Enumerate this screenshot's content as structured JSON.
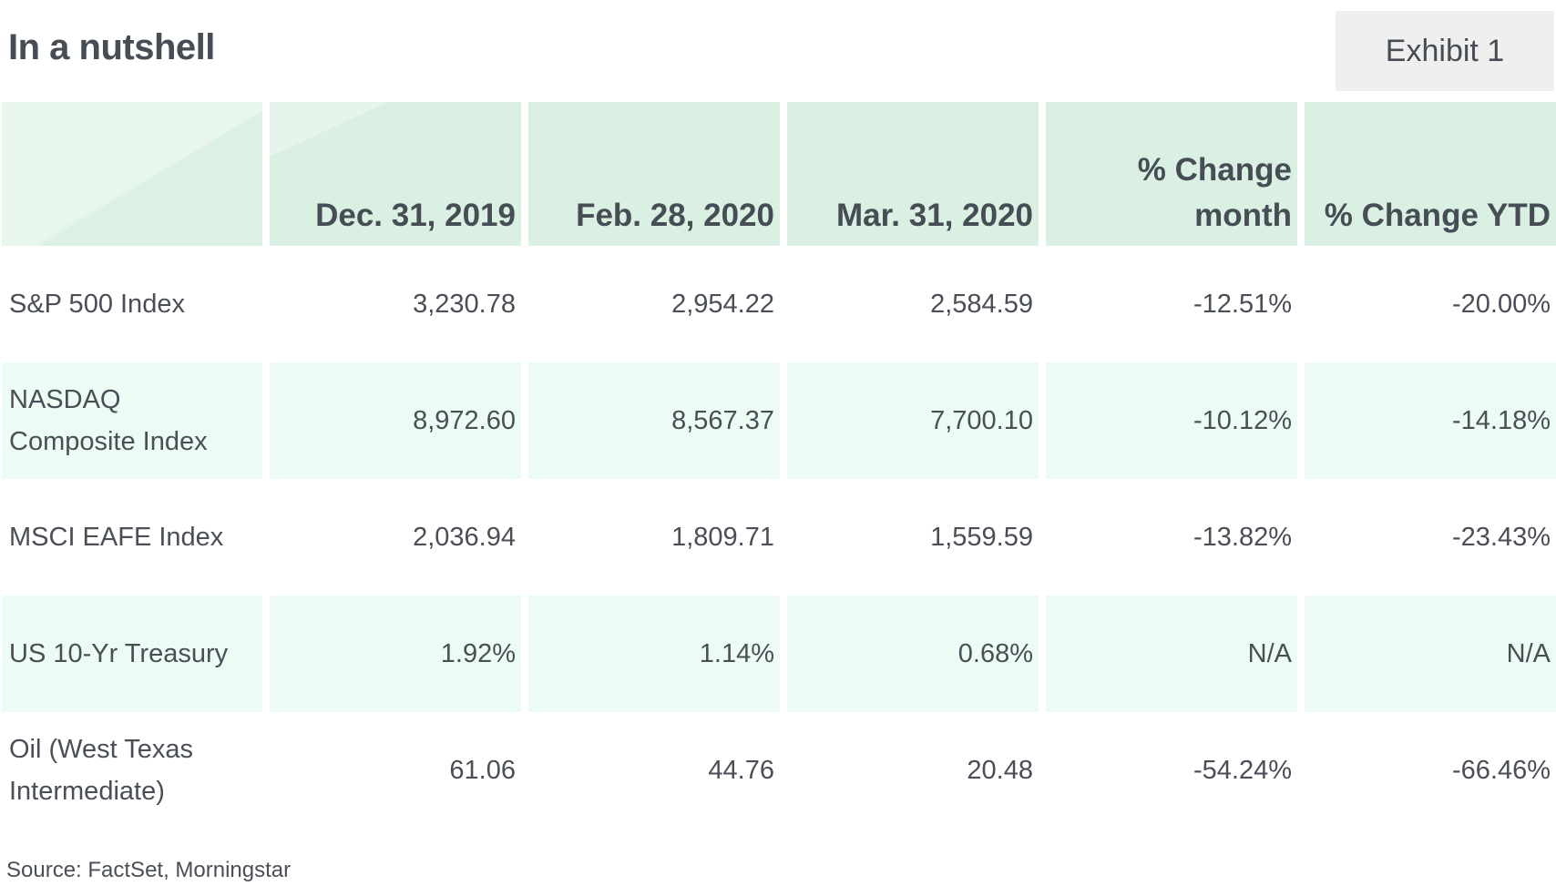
{
  "title": "In a nutshell",
  "exhibit": "Exhibit 1",
  "colors": {
    "header_bg": "#d9f0e3",
    "shaded_row_bg": "#ecfbf3",
    "text": "#4a4f57",
    "badge_bg": "#efefef"
  },
  "chart_data": {
    "type": "table",
    "title": "In a nutshell",
    "columns": [
      "",
      "Dec. 31, 2019",
      "Feb. 28, 2020",
      "Mar. 31, 2020",
      "% Change month",
      "% Change YTD"
    ],
    "header": {
      "c1": "Dec. 31, 2019",
      "c2": "Feb. 28, 2020",
      "c3": "Mar. 31, 2020",
      "c4_line1": "% Change",
      "c4_line2": "month",
      "c5": "% Change YTD"
    },
    "rows": [
      {
        "label_line1": "S&P 500 Index",
        "label_line2": "",
        "values": [
          "3,230.78",
          "2,954.22",
          "2,584.59",
          "-12.51%",
          "-20.00%"
        ]
      },
      {
        "label_line1": "NASDAQ",
        "label_line2": "Composite Index",
        "values": [
          "8,972.60",
          "8,567.37",
          "7,700.10",
          "-10.12%",
          "-14.18%"
        ]
      },
      {
        "label_line1": "MSCI EAFE Index",
        "label_line2": "",
        "values": [
          "2,036.94",
          "1,809.71",
          "1,559.59",
          "-13.82%",
          "-23.43%"
        ]
      },
      {
        "label_line1": "US 10-Yr Treasury",
        "label_line2": "",
        "values": [
          "1.92%",
          "1.14%",
          "0.68%",
          "N/A",
          "N/A"
        ]
      },
      {
        "label_line1": "Oil (West Texas",
        "label_line2": "Intermediate)",
        "values": [
          "61.06",
          "44.76",
          "20.48",
          "-54.24%",
          "-66.46%"
        ]
      }
    ]
  },
  "source": "Source: FactSet, Morningstar"
}
